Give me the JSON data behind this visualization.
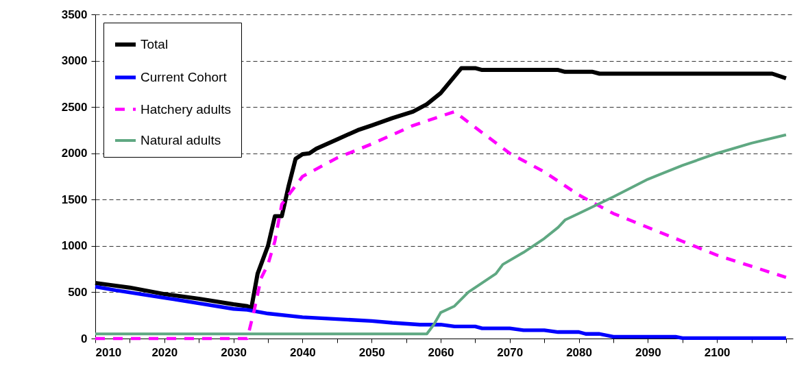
{
  "chart_data": {
    "type": "line",
    "xlim": [
      2010,
      2111
    ],
    "ylim": [
      0,
      3500
    ],
    "xticks": [
      2010,
      {
        "value": 2015,
        "label": null
      },
      2020,
      {
        "value": 2025,
        "label": null
      },
      2030,
      {
        "value": 2035,
        "label": null
      },
      2040,
      {
        "value": 2045,
        "label": null
      },
      2050,
      {
        "value": 2055,
        "label": null
      },
      2060,
      {
        "value": 2065,
        "label": null
      },
      2070,
      {
        "value": 2075,
        "label": null
      },
      2080,
      {
        "value": 2085,
        "label": null
      },
      2090,
      {
        "value": 2095,
        "label": null
      },
      2100,
      {
        "value": 2105,
        "label": null
      },
      {
        "value": 2110,
        "label": null
      }
    ],
    "yticks": [
      0,
      500,
      1000,
      1500,
      2000,
      2500,
      3000,
      3500
    ],
    "grid": "y",
    "legend": "top left",
    "marker": "none",
    "series": [
      {
        "name": "Total",
        "color": "#000000",
        "line_style": "solid",
        "x": [
          2010,
          2012,
          2015,
          2020,
          2025,
          2030,
          2032,
          2032.6,
          2033.5,
          2035,
          2036,
          2037,
          2038,
          2039,
          2040,
          2041,
          2042,
          2045,
          2048,
          2050,
          2053,
          2056,
          2058,
          2060,
          2063,
          2065,
          2066,
          2077,
          2078,
          2082,
          2083,
          2108,
          2110
        ],
        "values": [
          600,
          580,
          550,
          480,
          430,
          370,
          350,
          330,
          700,
          1000,
          1320,
          1320,
          1650,
          1940,
          1990,
          2000,
          2050,
          2150,
          2250,
          2300,
          2380,
          2450,
          2530,
          2650,
          2920,
          2920,
          2900,
          2900,
          2880,
          2880,
          2860,
          2860,
          2810
        ]
      },
      {
        "name": "Current Cohort",
        "color": "#0000ff",
        "line_style": "solid",
        "x": [
          2010,
          2013,
          2020,
          2025,
          2030,
          2032,
          2035,
          2040,
          2045,
          2050,
          2053,
          2057,
          2060,
          2062,
          2065,
          2066,
          2070,
          2072,
          2075,
          2077,
          2080,
          2081,
          2083,
          2085,
          2094,
          2095,
          2110
        ],
        "values": [
          560,
          520,
          440,
          380,
          320,
          310,
          270,
          230,
          210,
          190,
          170,
          150,
          150,
          130,
          130,
          110,
          110,
          90,
          90,
          70,
          70,
          50,
          50,
          20,
          20,
          5,
          5
        ]
      },
      {
        "name": "Hatchery adults",
        "color": "#ff00ff",
        "line_style": "dashed",
        "x": [
          2010,
          2032,
          2033,
          2034,
          2035,
          2036,
          2037,
          2040,
          2045,
          2050,
          2056,
          2060,
          2062,
          2065,
          2070,
          2075,
          2080,
          2085,
          2090,
          2095,
          2100,
          2105,
          2110
        ],
        "values": [
          0,
          0,
          300,
          650,
          800,
          1050,
          1450,
          1750,
          1950,
          2100,
          2300,
          2400,
          2450,
          2280,
          2000,
          1800,
          1550,
          1350,
          1200,
          1050,
          900,
          780,
          660
        ]
      },
      {
        "name": "Natural adults",
        "color": "#5fa882",
        "line_style": "solid",
        "x": [
          2010,
          2058,
          2059,
          2060,
          2062,
          2064,
          2066,
          2068,
          2069,
          2072,
          2075,
          2077,
          2078,
          2080,
          2085,
          2090,
          2095,
          2100,
          2105,
          2110
        ],
        "values": [
          50,
          50,
          150,
          280,
          350,
          500,
          600,
          700,
          800,
          930,
          1080,
          1200,
          1280,
          1350,
          1530,
          1720,
          1870,
          2000,
          2110,
          2200
        ]
      }
    ]
  }
}
